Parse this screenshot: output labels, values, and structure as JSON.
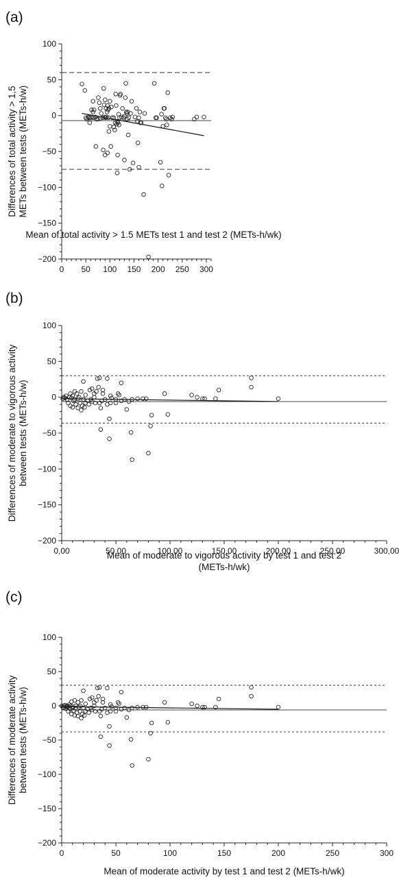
{
  "chart_data": [
    {
      "panel": "(a)",
      "type": "scatter",
      "xlabel": "Mean of total activity > 1.5 METs test 1 and test 2 (METs-h/wk)",
      "ylabel": [
        "Differences of total activity > 1,5",
        "METs between tests (METs-h/w)"
      ],
      "xlim": [
        0,
        310
      ],
      "ylim": [
        -200,
        100
      ],
      "xticks": [
        0,
        50,
        100,
        150,
        200,
        250,
        300
      ],
      "xtick_labels": [
        "0",
        "50",
        "100",
        "150",
        "200",
        "250",
        "300"
      ],
      "yticks": [
        -200,
        -150,
        -100,
        -50,
        0,
        50,
        100
      ],
      "ytick_labels": [
        "−200",
        "−150",
        "−100",
        "−50",
        "0",
        "50",
        "100"
      ],
      "mean_line": -7,
      "limits_of_agreement": [
        60,
        -75
      ],
      "regression_line": [
        [
          42,
          3
        ],
        [
          295,
          -28
        ]
      ],
      "points": [
        [
          42,
          44
        ],
        [
          48,
          35
        ],
        [
          50,
          -3
        ],
        [
          52,
          -5
        ],
        [
          55,
          -2
        ],
        [
          56,
          -3
        ],
        [
          58,
          -10
        ],
        [
          60,
          -3
        ],
        [
          62,
          8
        ],
        [
          63,
          -2
        ],
        [
          65,
          20
        ],
        [
          65,
          5
        ],
        [
          66,
          -3
        ],
        [
          67,
          8
        ],
        [
          70,
          -2
        ],
        [
          71,
          -43
        ],
        [
          72,
          -5
        ],
        [
          75,
          -5
        ],
        [
          76,
          25
        ],
        [
          78,
          18
        ],
        [
          80,
          -4
        ],
        [
          80,
          10
        ],
        [
          82,
          3
        ],
        [
          85,
          -3
        ],
        [
          86,
          -48
        ],
        [
          87,
          38
        ],
        [
          88,
          15
        ],
        [
          89,
          -2
        ],
        [
          90,
          -55
        ],
        [
          90,
          22
        ],
        [
          91,
          -3
        ],
        [
          92,
          10
        ],
        [
          93,
          -2
        ],
        [
          94,
          5
        ],
        [
          95,
          -52
        ],
        [
          95,
          14
        ],
        [
          96,
          8
        ],
        [
          97,
          -3
        ],
        [
          98,
          -22
        ],
        [
          98,
          10
        ],
        [
          100,
          20
        ],
        [
          100,
          -15
        ],
        [
          102,
          -43
        ],
        [
          103,
          12
        ],
        [
          105,
          -3
        ],
        [
          108,
          -3
        ],
        [
          108,
          -16
        ],
        [
          110,
          -20
        ],
        [
          111,
          -10
        ],
        [
          112,
          30
        ],
        [
          113,
          14
        ],
        [
          114,
          -12
        ],
        [
          115,
          -80
        ],
        [
          115,
          -8
        ],
        [
          116,
          -55
        ],
        [
          117,
          -10
        ],
        [
          118,
          2
        ],
        [
          119,
          -13
        ],
        [
          120,
          -3
        ],
        [
          121,
          28
        ],
        [
          122,
          30
        ],
        [
          124,
          -2
        ],
        [
          126,
          10
        ],
        [
          128,
          -3
        ],
        [
          130,
          -62
        ],
        [
          130,
          -1
        ],
        [
          132,
          25
        ],
        [
          133,
          45
        ],
        [
          134,
          5
        ],
        [
          135,
          3
        ],
        [
          136,
          -5
        ],
        [
          137,
          5
        ],
        [
          138,
          -27
        ],
        [
          139,
          -3
        ],
        [
          141,
          -75
        ],
        [
          143,
          3
        ],
        [
          145,
          20
        ],
        [
          148,
          -66
        ],
        [
          152,
          -2
        ],
        [
          155,
          10
        ],
        [
          157,
          -8
        ],
        [
          158,
          -38
        ],
        [
          160,
          -72
        ],
        [
          160,
          -3
        ],
        [
          162,
          5
        ],
        [
          163,
          -10
        ],
        [
          165,
          -10
        ],
        [
          170,
          -110
        ],
        [
          172,
          3
        ],
        [
          180,
          -197
        ],
        [
          192,
          45
        ],
        [
          195,
          -3
        ],
        [
          197,
          -3
        ],
        [
          205,
          -65
        ],
        [
          207,
          2
        ],
        [
          208,
          -98
        ],
        [
          210,
          -15
        ],
        [
          212,
          10
        ],
        [
          213,
          10
        ],
        [
          215,
          -3
        ],
        [
          217,
          -5
        ],
        [
          218,
          -13
        ],
        [
          220,
          32
        ],
        [
          222,
          -83
        ],
        [
          225,
          -3
        ],
        [
          228,
          -5
        ],
        [
          230,
          -2
        ],
        [
          275,
          -5
        ],
        [
          280,
          -2
        ],
        [
          295,
          -2
        ]
      ]
    },
    {
      "panel": "(b)",
      "type": "scatter",
      "xlabel": [
        "Mean of moderate to vigorous activity by test 1 and test 2",
        "(METs-h/wk)"
      ],
      "ylabel": [
        "Differences of moderate to vigorous activity",
        "between tests (METs-h/w)"
      ],
      "xlim": [
        0,
        300
      ],
      "ylim": [
        -200,
        100
      ],
      "xticks": [
        0,
        50,
        100,
        150,
        200,
        250,
        300
      ],
      "xtick_labels": [
        "0,00",
        "50,00",
        "100,00",
        "150,00",
        "200,00",
        "250,00",
        "300,00"
      ],
      "yticks": [
        -200,
        -150,
        -100,
        -50,
        0,
        50,
        100
      ],
      "ytick_labels": [
        "−200",
        "−150",
        "−100",
        "−50",
        "0",
        "50",
        "100"
      ],
      "mean_line": -6,
      "limits_of_agreement": [
        30,
        -36
      ],
      "regression_line": [
        [
          0,
          -2
        ],
        [
          200,
          -6
        ]
      ],
      "points": [
        [
          1,
          -2
        ],
        [
          2,
          0
        ],
        [
          3,
          -1
        ],
        [
          4,
          2
        ],
        [
          5,
          -3
        ],
        [
          6,
          -8
        ],
        [
          7,
          0
        ],
        [
          8,
          -12
        ],
        [
          8,
          5
        ],
        [
          9,
          -1
        ],
        [
          10,
          2
        ],
        [
          10,
          -14
        ],
        [
          11,
          -5
        ],
        [
          12,
          8
        ],
        [
          12,
          -3
        ],
        [
          13,
          -10
        ],
        [
          14,
          5
        ],
        [
          15,
          -15
        ],
        [
          15,
          -2
        ],
        [
          16,
          0
        ],
        [
          17,
          -8
        ],
        [
          18,
          8
        ],
        [
          18,
          -18
        ],
        [
          19,
          -12
        ],
        [
          20,
          -3
        ],
        [
          20,
          22
        ],
        [
          21,
          -14
        ],
        [
          22,
          3
        ],
        [
          22,
          -8
        ],
        [
          24,
          -5
        ],
        [
          25,
          -10
        ],
        [
          26,
          10
        ],
        [
          27,
          -3
        ],
        [
          28,
          -6
        ],
        [
          28,
          12
        ],
        [
          30,
          0
        ],
        [
          30,
          5
        ],
        [
          31,
          -8
        ],
        [
          32,
          8
        ],
        [
          33,
          26
        ],
        [
          34,
          14
        ],
        [
          35,
          -8
        ],
        [
          35,
          27
        ],
        [
          36,
          -15
        ],
        [
          36,
          -45
        ],
        [
          37,
          -5
        ],
        [
          38,
          10
        ],
        [
          38,
          5
        ],
        [
          40,
          -3
        ],
        [
          42,
          -10
        ],
        [
          42,
          26
        ],
        [
          44,
          -58
        ],
        [
          44,
          -30
        ],
        [
          45,
          -8
        ],
        [
          45,
          2
        ],
        [
          46,
          -1
        ],
        [
          50,
          -8
        ],
        [
          50,
          -3
        ],
        [
          52,
          5
        ],
        [
          53,
          3
        ],
        [
          55,
          20
        ],
        [
          55,
          -5
        ],
        [
          58,
          -3
        ],
        [
          60,
          -17
        ],
        [
          62,
          -6
        ],
        [
          64,
          -49
        ],
        [
          65,
          -87
        ],
        [
          65,
          -3
        ],
        [
          70,
          -2
        ],
        [
          75,
          -2
        ],
        [
          78,
          -2
        ],
        [
          80,
          -78
        ],
        [
          82,
          -40
        ],
        [
          83,
          -25
        ],
        [
          95,
          5
        ],
        [
          98,
          -24
        ],
        [
          120,
          3
        ],
        [
          125,
          0
        ],
        [
          130,
          -2
        ],
        [
          132,
          -2
        ],
        [
          142,
          -2
        ],
        [
          145,
          10
        ],
        [
          175,
          27
        ],
        [
          175,
          14
        ],
        [
          200,
          -2
        ]
      ]
    },
    {
      "panel": "(c)",
      "type": "scatter",
      "xlabel": "Mean of moderate activity by test 1 and test 2 (METs-h/wk)",
      "ylabel": [
        "Differences of moderate activity",
        "between tests (METs-h/w)"
      ],
      "xlim": [
        0,
        300
      ],
      "ylim": [
        -200,
        100
      ],
      "xticks": [
        0,
        50,
        100,
        150,
        200,
        250,
        300
      ],
      "xtick_labels": [
        "0",
        "50",
        "100",
        "150",
        "200",
        "250",
        "300"
      ],
      "yticks": [
        -200,
        -150,
        -100,
        -50,
        0,
        50,
        100
      ],
      "ytick_labels": [
        "−200",
        "−150",
        "−100",
        "−50",
        "0",
        "50",
        "100"
      ],
      "mean_line": -6,
      "limits_of_agreement": [
        30,
        -38
      ],
      "regression_line": [
        [
          0,
          -1
        ],
        [
          200,
          -5
        ]
      ],
      "points": [
        [
          0,
          0
        ],
        [
          1,
          -2
        ],
        [
          2,
          0
        ],
        [
          2,
          -3
        ],
        [
          3,
          1
        ],
        [
          4,
          -1
        ],
        [
          4,
          -4
        ],
        [
          5,
          0
        ],
        [
          5,
          -2
        ],
        [
          6,
          -1
        ],
        [
          6,
          -8
        ],
        [
          7,
          -3
        ],
        [
          7,
          2
        ],
        [
          8,
          0
        ],
        [
          8,
          -5
        ],
        [
          9,
          -12
        ],
        [
          9,
          6
        ],
        [
          10,
          -1
        ],
        [
          10,
          -3
        ],
        [
          11,
          -7
        ],
        [
          12,
          -14
        ],
        [
          12,
          8
        ],
        [
          13,
          0
        ],
        [
          13,
          -3
        ],
        [
          14,
          -10
        ],
        [
          15,
          5
        ],
        [
          15,
          -15
        ],
        [
          16,
          -2
        ],
        [
          17,
          0
        ],
        [
          17,
          -8
        ],
        [
          18,
          8
        ],
        [
          18,
          -18
        ],
        [
          19,
          -12
        ],
        [
          20,
          -3
        ],
        [
          20,
          22
        ],
        [
          21,
          -14
        ],
        [
          22,
          3
        ],
        [
          22,
          -8
        ],
        [
          24,
          -5
        ],
        [
          25,
          -10
        ],
        [
          26,
          10
        ],
        [
          27,
          -3
        ],
        [
          28,
          -6
        ],
        [
          28,
          12
        ],
        [
          30,
          0
        ],
        [
          30,
          5
        ],
        [
          31,
          -8
        ],
        [
          32,
          8
        ],
        [
          33,
          26
        ],
        [
          34,
          14
        ],
        [
          35,
          -8
        ],
        [
          35,
          27
        ],
        [
          36,
          -15
        ],
        [
          36,
          -45
        ],
        [
          37,
          -5
        ],
        [
          38,
          10
        ],
        [
          38,
          5
        ],
        [
          40,
          -3
        ],
        [
          42,
          -10
        ],
        [
          42,
          26
        ],
        [
          44,
          -58
        ],
        [
          44,
          -30
        ],
        [
          45,
          -8
        ],
        [
          45,
          2
        ],
        [
          46,
          -1
        ],
        [
          50,
          -8
        ],
        [
          50,
          -3
        ],
        [
          52,
          5
        ],
        [
          53,
          3
        ],
        [
          55,
          20
        ],
        [
          55,
          -5
        ],
        [
          58,
          -3
        ],
        [
          60,
          -17
        ],
        [
          62,
          -6
        ],
        [
          64,
          -49
        ],
        [
          65,
          -87
        ],
        [
          65,
          -3
        ],
        [
          70,
          -2
        ],
        [
          75,
          -2
        ],
        [
          78,
          -2
        ],
        [
          80,
          -78
        ],
        [
          82,
          -40
        ],
        [
          83,
          -25
        ],
        [
          95,
          5
        ],
        [
          98,
          -24
        ],
        [
          120,
          3
        ],
        [
          125,
          0
        ],
        [
          130,
          -2
        ],
        [
          132,
          -2
        ],
        [
          142,
          -2
        ],
        [
          145,
          10
        ],
        [
          175,
          27
        ],
        [
          175,
          14
        ],
        [
          200,
          -2
        ]
      ]
    }
  ]
}
